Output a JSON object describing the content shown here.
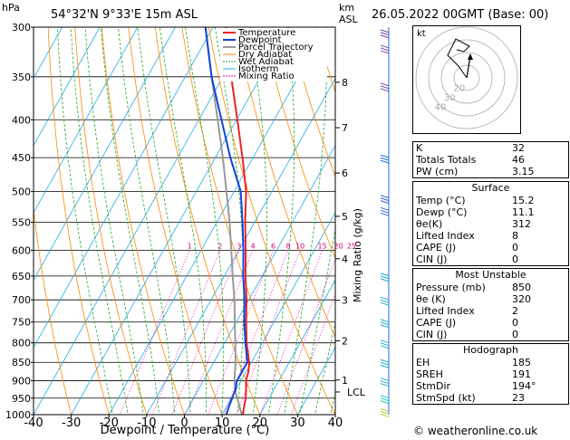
{
  "header": {
    "pressure_unit": "hPa",
    "location": "54°32'N  9°33'E  15m  ASL",
    "height_unit_1": "km",
    "height_unit_2": "ASL",
    "datetime": "26.05.2022  00GMT  (Base: 00)"
  },
  "chart_data": {
    "type": "skew-t",
    "xlabel": "Dewpoint / Temperature (°C)",
    "ylabel_right": "Mixing Ratio (g/kg)",
    "x_ticks": [
      -40,
      -30,
      -20,
      -10,
      0,
      10,
      20,
      30,
      40
    ],
    "pressure_ticks": [
      300,
      350,
      400,
      450,
      500,
      550,
      600,
      650,
      700,
      750,
      800,
      850,
      900,
      950,
      1000
    ],
    "km_ticks": [
      {
        "label": "8",
        "p": 356
      },
      {
        "label": "7",
        "p": 410
      },
      {
        "label": "6",
        "p": 472
      },
      {
        "label": "5",
        "p": 540
      },
      {
        "label": "4",
        "p": 616
      },
      {
        "label": "3",
        "p": 701
      },
      {
        "label": "2",
        "p": 795
      },
      {
        "label": "1",
        "p": 898
      }
    ],
    "lcl": {
      "label": "LCL",
      "p": 932
    },
    "mixing_ratios": [
      "1",
      "2",
      "3",
      "4",
      "6",
      "8",
      "10",
      "15",
      "20",
      "25"
    ],
    "legend": [
      {
        "name": "Temperature",
        "color": "#ee2222"
      },
      {
        "name": "Dewpoint",
        "color": "#1144dd"
      },
      {
        "name": "Parcel Trajectory",
        "color": "#999999"
      },
      {
        "name": "Dry Adiabat",
        "color": "#ff8800"
      },
      {
        "name": "Wet Adiabat",
        "color": "#22aa22"
      },
      {
        "name": "Isotherm",
        "color": "#22aaee"
      },
      {
        "name": "Mixing Ratio",
        "color": "#ee00aa"
      }
    ],
    "temperature": [
      [
        1000,
        15.5
      ],
      [
        975,
        14.6
      ],
      [
        950,
        13.8
      ],
      [
        925,
        12.6
      ],
      [
        900,
        11.3
      ],
      [
        875,
        10.6
      ],
      [
        850,
        9.4
      ],
      [
        800,
        5.8
      ],
      [
        750,
        2.6
      ],
      [
        700,
        -0.6
      ],
      [
        650,
        -4.4
      ],
      [
        600,
        -8.2
      ],
      [
        550,
        -12.5
      ],
      [
        500,
        -16.8
      ],
      [
        450,
        -22.8
      ],
      [
        400,
        -29.8
      ],
      [
        350,
        -37.8
      ],
      [
        300,
        -46.6
      ]
    ],
    "dewpoint": [
      [
        1000,
        11.1
      ],
      [
        975,
        10.6
      ],
      [
        950,
        10.2
      ],
      [
        925,
        9.8
      ],
      [
        900,
        8.9
      ],
      [
        875,
        8.9
      ],
      [
        850,
        8.9
      ],
      [
        800,
        5.5
      ],
      [
        750,
        2.1
      ],
      [
        700,
        -1.1
      ],
      [
        650,
        -5.0
      ],
      [
        600,
        -8.8
      ],
      [
        550,
        -13.2
      ],
      [
        500,
        -18.2
      ],
      [
        450,
        -26.0
      ],
      [
        400,
        -34.0
      ],
      [
        350,
        -43.0
      ],
      [
        300,
        -52.0
      ]
    ],
    "parcel": [
      [
        1000,
        15.2
      ],
      [
        932,
        10.2
      ],
      [
        900,
        8.2
      ],
      [
        850,
        5.8
      ],
      [
        800,
        2.8
      ],
      [
        750,
        -0.4
      ],
      [
        700,
        -3.8
      ],
      [
        650,
        -7.8
      ],
      [
        600,
        -12.0
      ],
      [
        550,
        -16.6
      ],
      [
        500,
        -22.0
      ],
      [
        450,
        -28.0
      ],
      [
        400,
        -35.0
      ],
      [
        350,
        -43.0
      ],
      [
        300,
        -52.0
      ]
    ]
  },
  "hodograph": {
    "label": "kt",
    "ring_labels": [
      "20",
      "30",
      "40"
    ]
  },
  "indices": [
    {
      "label": "K",
      "value": "32"
    },
    {
      "label": "Totals Totals",
      "value": "46"
    },
    {
      "label": "PW (cm)",
      "value": "3.15"
    }
  ],
  "surface": {
    "title": "Surface",
    "rows": [
      {
        "label": "Temp (°C)",
        "value": "15.2"
      },
      {
        "label": "Dewp (°C)",
        "value": "11.1"
      },
      {
        "label": "θe(K)",
        "value": "312"
      },
      {
        "label": "Lifted Index",
        "value": "8"
      },
      {
        "label": "CAPE (J)",
        "value": "0"
      },
      {
        "label": "CIN (J)",
        "value": "0"
      }
    ]
  },
  "most_unstable": {
    "title": "Most Unstable",
    "rows": [
      {
        "label": "Pressure (mb)",
        "value": "850"
      },
      {
        "label": "θe (K)",
        "value": "320"
      },
      {
        "label": "Lifted Index",
        "value": "2"
      },
      {
        "label": "CAPE (J)",
        "value": "0"
      },
      {
        "label": "CIN (J)",
        "value": "0"
      }
    ]
  },
  "hodo_table": {
    "title": "Hodograph",
    "rows": [
      {
        "label": "EH",
        "value": "185"
      },
      {
        "label": "SREH",
        "value": "191"
      },
      {
        "label": "StmDir",
        "value": "194°"
      },
      {
        "label": "StmSpd (kt)",
        "value": "23"
      }
    ]
  },
  "copyright": "© weatheronline.co.uk"
}
